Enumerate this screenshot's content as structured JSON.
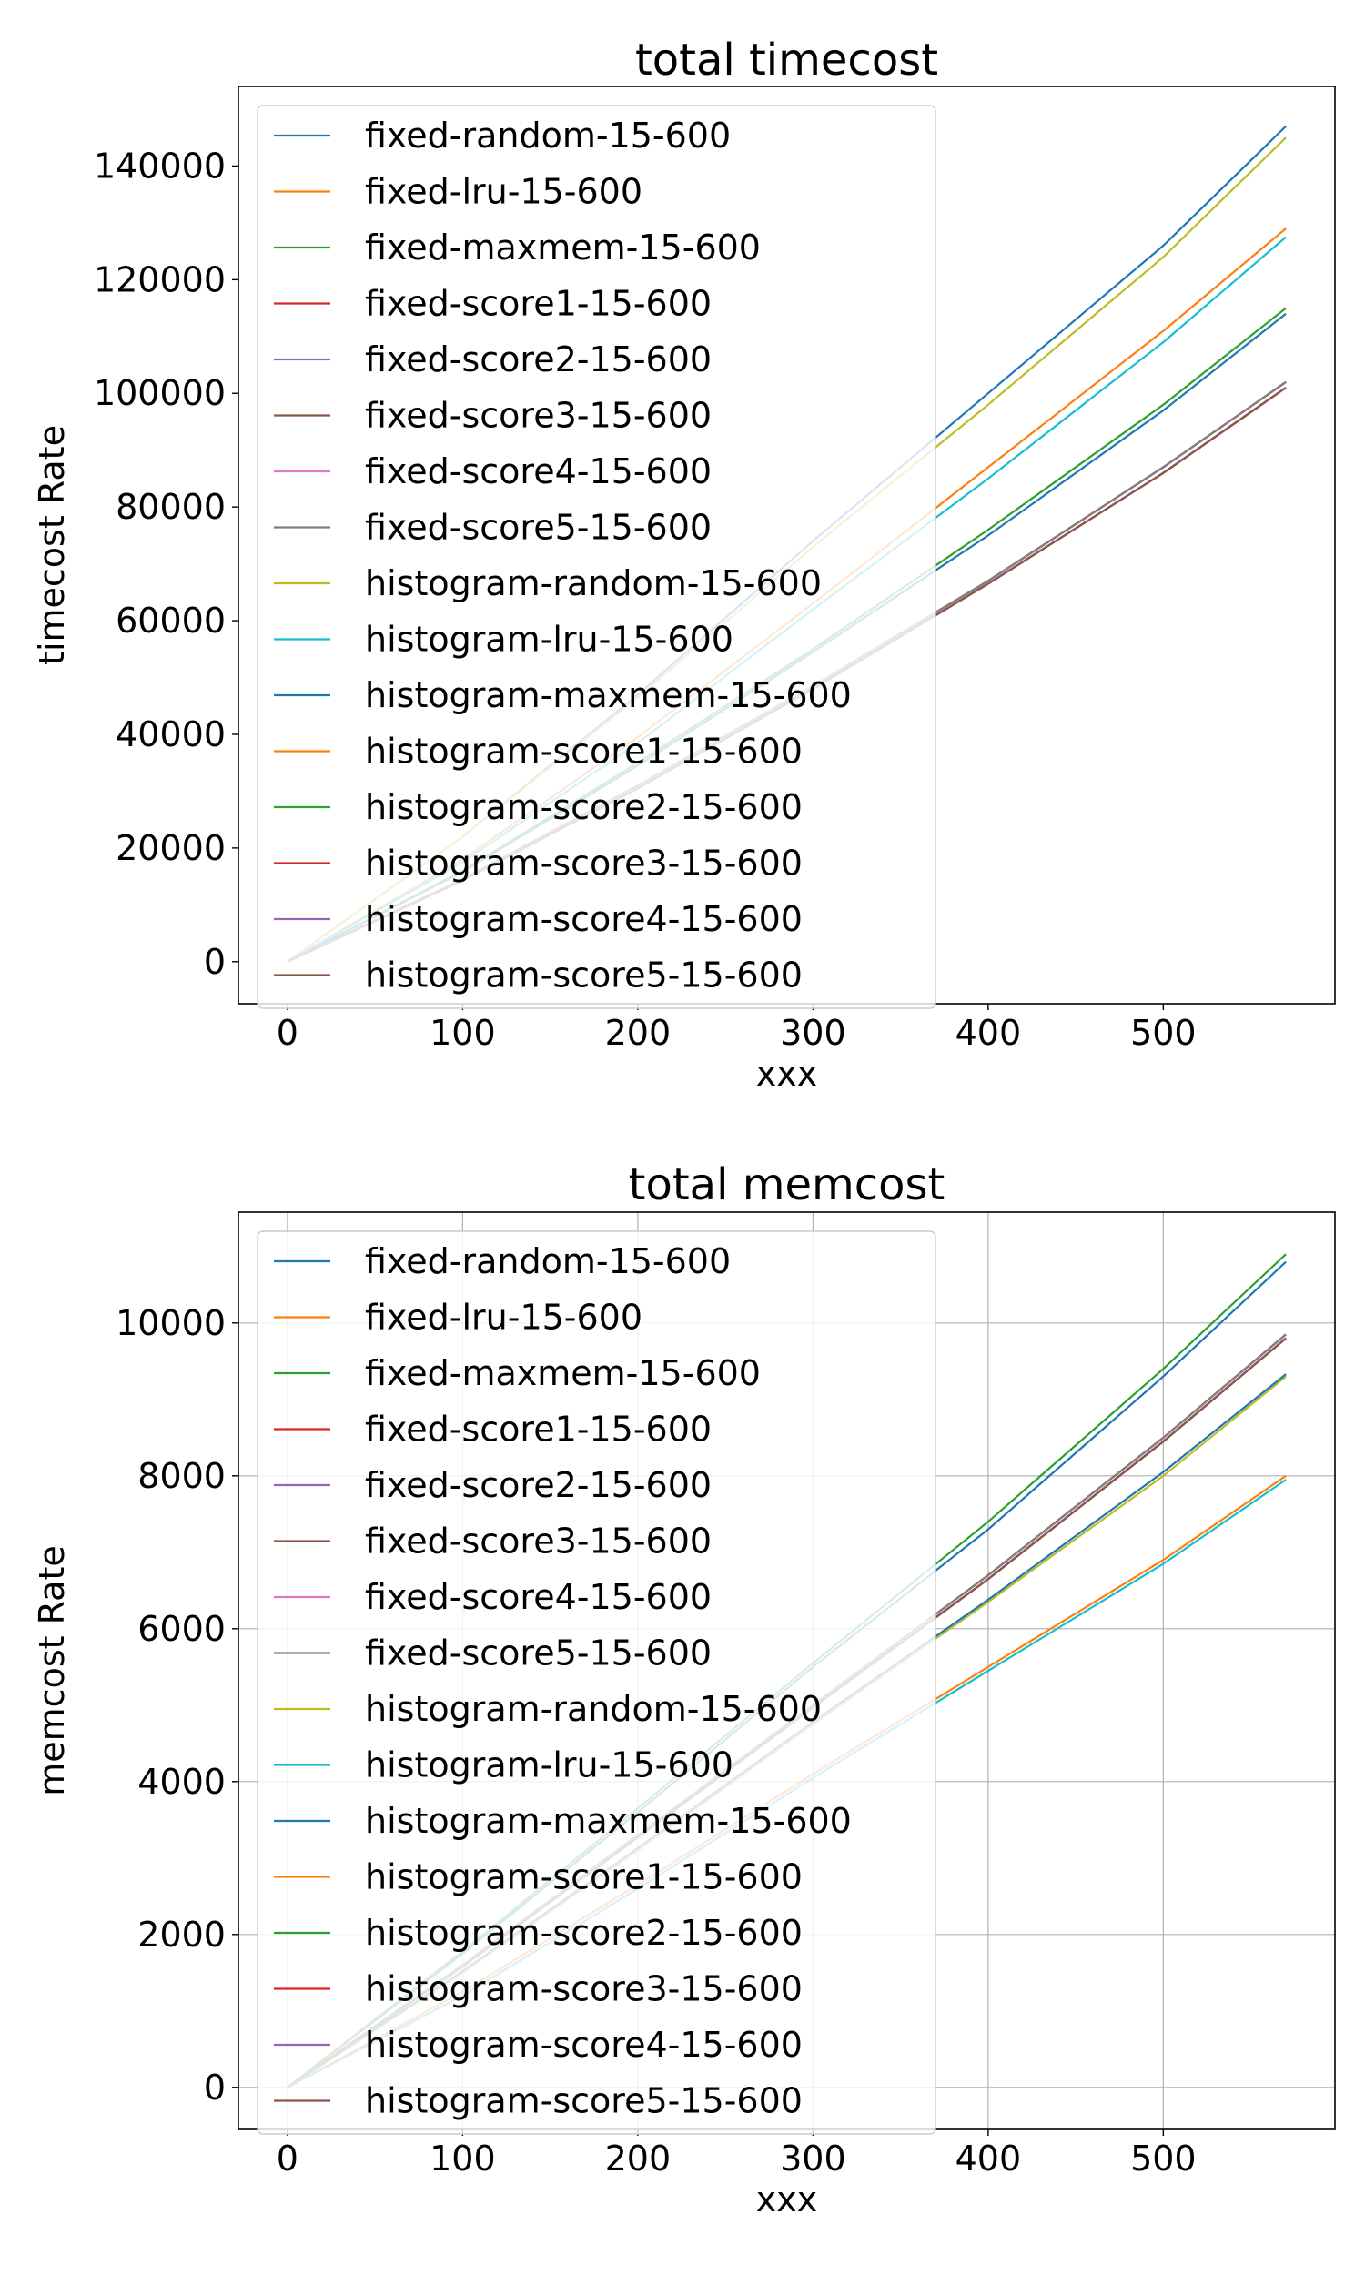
{
  "chart_data": [
    {
      "type": "line",
      "title": "total timecost",
      "xlabel": "xxx",
      "ylabel": "timecost Rate",
      "xlim": [
        -28,
        598
      ],
      "ylim": [
        -7400,
        154000
      ],
      "xticks": [
        0,
        100,
        200,
        300,
        400,
        500
      ],
      "yticks": [
        0,
        20000,
        40000,
        60000,
        80000,
        100000,
        120000,
        140000
      ],
      "grid": false,
      "legend": "upper-left",
      "x": [
        0,
        100,
        200,
        300,
        400,
        500,
        570
      ],
      "series": [
        {
          "name": "fixed-random-15-600",
          "color": "#1f77b4",
          "values": [
            0,
            22000,
            47000,
            74000,
            100000,
            126000,
            147000
          ]
        },
        {
          "name": "fixed-lru-15-600",
          "color": "#ff7f0e",
          "values": [
            0,
            18000,
            39500,
            63000,
            87000,
            111000,
            129000
          ]
        },
        {
          "name": "fixed-maxmem-15-600",
          "color": "#2ca02c",
          "values": [
            0,
            16000,
            35000,
            55000,
            76000,
            98000,
            115000
          ]
        },
        {
          "name": "fixed-score1-15-600",
          "color": "#d62728",
          "values": [
            0,
            14500,
            31000,
            48500,
            67000,
            87000,
            102000
          ]
        },
        {
          "name": "fixed-score2-15-600",
          "color": "#9467bd",
          "values": [
            0,
            14500,
            31000,
            48500,
            67000,
            87000,
            102000
          ]
        },
        {
          "name": "fixed-score3-15-600",
          "color": "#8c564b",
          "values": [
            0,
            14500,
            31000,
            48500,
            67000,
            87000,
            102000
          ]
        },
        {
          "name": "fixed-score4-15-600",
          "color": "#e377c2",
          "values": [
            0,
            14500,
            31000,
            48500,
            67000,
            87000,
            102000
          ]
        },
        {
          "name": "fixed-score5-15-600",
          "color": "#7f7f7f",
          "values": [
            0,
            14500,
            31000,
            48500,
            67000,
            87000,
            102000
          ]
        },
        {
          "name": "histogram-random-15-600",
          "color": "#bcbd22",
          "values": [
            0,
            22000,
            46500,
            73000,
            98000,
            124000,
            145000
          ]
        },
        {
          "name": "histogram-lru-15-600",
          "color": "#17becf",
          "values": [
            0,
            17500,
            38500,
            62000,
            85000,
            109000,
            127500
          ]
        },
        {
          "name": "histogram-maxmem-15-600",
          "color": "#1f77b4",
          "values": [
            0,
            15800,
            34500,
            54500,
            75000,
            97000,
            114000
          ]
        },
        {
          "name": "histogram-score1-15-600",
          "color": "#ff7f0e",
          "values": [
            0,
            14300,
            30500,
            48000,
            66500,
            86000,
            101000
          ]
        },
        {
          "name": "histogram-score2-15-600",
          "color": "#2ca02c",
          "values": [
            0,
            14300,
            30500,
            48000,
            66500,
            86000,
            101000
          ]
        },
        {
          "name": "histogram-score3-15-600",
          "color": "#d62728",
          "values": [
            0,
            14300,
            30500,
            48000,
            66500,
            86000,
            101000
          ]
        },
        {
          "name": "histogram-score4-15-600",
          "color": "#9467bd",
          "values": [
            0,
            14300,
            30500,
            48000,
            66500,
            86000,
            101000
          ]
        },
        {
          "name": "histogram-score5-15-600",
          "color": "#8c564b",
          "values": [
            0,
            14300,
            30500,
            48000,
            66500,
            86000,
            101000
          ]
        }
      ]
    },
    {
      "type": "line",
      "title": "total memcost",
      "xlabel": "xxx",
      "ylabel": "memcost Rate",
      "xlim": [
        -28,
        598
      ],
      "ylim": [
        -550,
        11450
      ],
      "xticks": [
        0,
        100,
        200,
        300,
        400,
        500
      ],
      "yticks": [
        0,
        2000,
        4000,
        6000,
        8000,
        10000
      ],
      "grid": true,
      "legend": "upper-left",
      "x": [
        0,
        100,
        200,
        300,
        400,
        500,
        570
      ],
      "series": [
        {
          "name": "fixed-random-15-600",
          "color": "#1f77b4",
          "values": [
            0,
            1750,
            3600,
            5500,
            7300,
            9300,
            10800
          ]
        },
        {
          "name": "fixed-lru-15-600",
          "color": "#ff7f0e",
          "values": [
            0,
            1250,
            2650,
            4100,
            5500,
            6900,
            8000
          ]
        },
        {
          "name": "fixed-maxmem-15-600",
          "color": "#2ca02c",
          "values": [
            0,
            1780,
            3650,
            5550,
            7400,
            9400,
            10900
          ]
        },
        {
          "name": "fixed-score1-15-600",
          "color": "#d62728",
          "values": [
            0,
            1600,
            3300,
            5000,
            6700,
            8500,
            9850
          ]
        },
        {
          "name": "fixed-score2-15-600",
          "color": "#9467bd",
          "values": [
            0,
            1600,
            3300,
            5000,
            6700,
            8500,
            9850
          ]
        },
        {
          "name": "fixed-score3-15-600",
          "color": "#8c564b",
          "values": [
            0,
            1600,
            3300,
            5000,
            6700,
            8500,
            9850
          ]
        },
        {
          "name": "fixed-score4-15-600",
          "color": "#e377c2",
          "values": [
            0,
            1600,
            3300,
            5000,
            6700,
            8500,
            9850
          ]
        },
        {
          "name": "fixed-score5-15-600",
          "color": "#7f7f7f",
          "values": [
            0,
            1600,
            3300,
            5000,
            6700,
            8500,
            9850
          ]
        },
        {
          "name": "histogram-random-15-600",
          "color": "#bcbd22",
          "values": [
            0,
            1500,
            3100,
            4750,
            6350,
            8000,
            9300
          ]
        },
        {
          "name": "histogram-lru-15-600",
          "color": "#17becf",
          "values": [
            0,
            1200,
            2600,
            4050,
            5450,
            6850,
            7950
          ]
        },
        {
          "name": "histogram-maxmem-15-600",
          "color": "#1f77b4",
          "values": [
            0,
            1520,
            3130,
            4780,
            6380,
            8050,
            9330
          ]
        },
        {
          "name": "histogram-score1-15-600",
          "color": "#ff7f0e",
          "values": [
            0,
            1580,
            3270,
            4970,
            6650,
            8450,
            9800
          ]
        },
        {
          "name": "histogram-score2-15-600",
          "color": "#2ca02c",
          "values": [
            0,
            1580,
            3270,
            4970,
            6650,
            8450,
            9800
          ]
        },
        {
          "name": "histogram-score3-15-600",
          "color": "#d62728",
          "values": [
            0,
            1580,
            3270,
            4970,
            6650,
            8450,
            9800
          ]
        },
        {
          "name": "histogram-score4-15-600",
          "color": "#9467bd",
          "values": [
            0,
            1580,
            3270,
            4970,
            6650,
            8450,
            9800
          ]
        },
        {
          "name": "histogram-score5-15-600",
          "color": "#8c564b",
          "values": [
            0,
            1580,
            3270,
            4970,
            6650,
            8450,
            9800
          ]
        }
      ]
    }
  ]
}
